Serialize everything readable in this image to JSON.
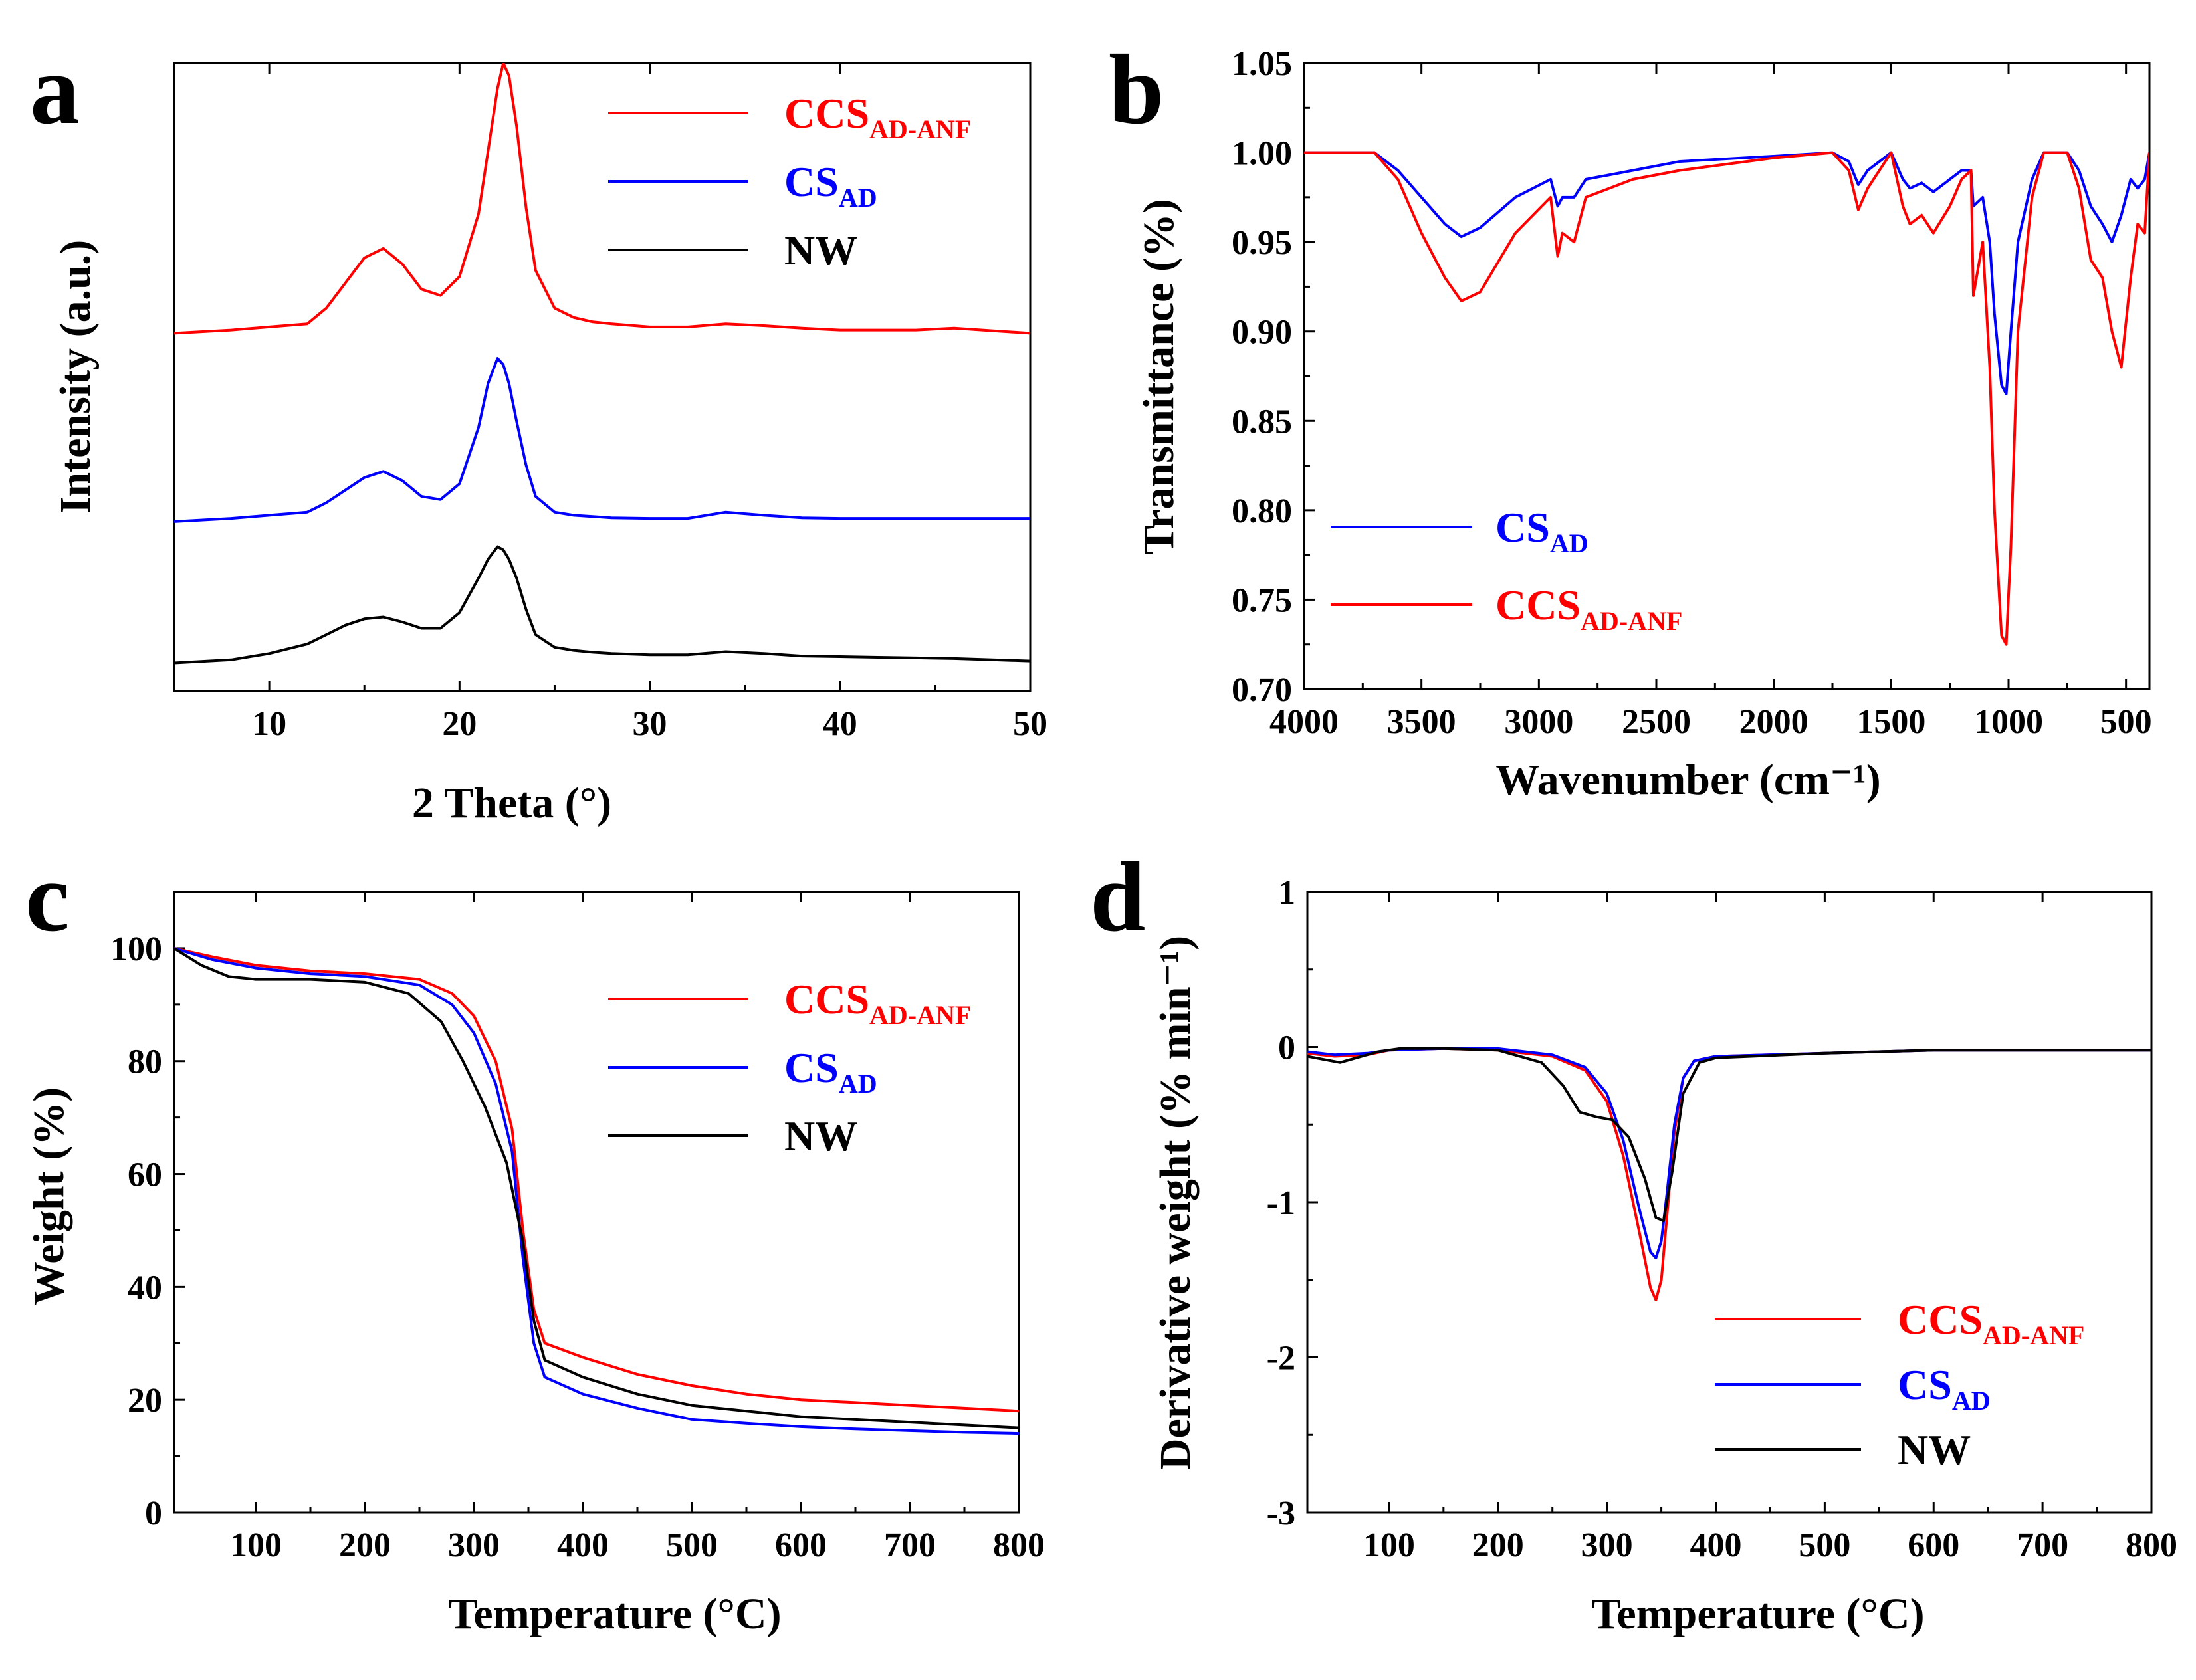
{
  "chart_data": [
    {
      "panel": "a",
      "type": "line",
      "title": "",
      "xlabel": "2 Theta (°)",
      "ylabel": "Intensity (a.u.)",
      "xlim": [
        5,
        50
      ],
      "ylim": [
        0,
        1
      ],
      "x_ticks": [
        "10",
        "20",
        "30",
        "40",
        "50"
      ],
      "y_ticks": [],
      "legend_position": "top-right",
      "series": [
        {
          "name": "CCS",
          "subscript": "AD-ANF",
          "color": "#ff0000",
          "x": [
            5,
            8,
            10,
            12,
            13,
            14,
            15,
            16,
            17,
            18,
            19,
            20,
            21,
            21.5,
            22,
            22.3,
            22.6,
            23,
            23.5,
            24,
            25,
            26,
            27,
            28,
            30,
            32,
            34,
            36,
            38,
            40,
            42,
            44,
            46,
            48,
            50
          ],
          "y": [
            0.57,
            0.575,
            0.58,
            0.585,
            0.61,
            0.65,
            0.69,
            0.705,
            0.68,
            0.64,
            0.63,
            0.66,
            0.76,
            0.86,
            0.96,
            1.0,
            0.98,
            0.9,
            0.77,
            0.67,
            0.61,
            0.595,
            0.588,
            0.585,
            0.58,
            0.58,
            0.585,
            0.582,
            0.578,
            0.575,
            0.575,
            0.575,
            0.578,
            0.574,
            0.57
          ]
        },
        {
          "name": "CS",
          "subscript": "AD",
          "color": "#0000ff",
          "x": [
            5,
            8,
            10,
            12,
            13,
            14,
            15,
            16,
            17,
            18,
            19,
            20,
            21,
            21.5,
            22,
            22.3,
            22.6,
            23,
            23.5,
            24,
            25,
            26,
            27,
            28,
            30,
            32,
            34,
            36,
            38,
            40,
            42,
            44,
            46,
            48,
            50
          ],
          "y": [
            0.27,
            0.275,
            0.28,
            0.285,
            0.3,
            0.32,
            0.34,
            0.35,
            0.335,
            0.31,
            0.305,
            0.33,
            0.42,
            0.49,
            0.53,
            0.52,
            0.49,
            0.43,
            0.36,
            0.31,
            0.285,
            0.28,
            0.278,
            0.276,
            0.275,
            0.275,
            0.285,
            0.28,
            0.276,
            0.275,
            0.275,
            0.275,
            0.275,
            0.275,
            0.275
          ]
        },
        {
          "name": "NW",
          "subscript": "",
          "color": "#000000",
          "x": [
            5,
            8,
            10,
            12,
            13,
            14,
            15,
            16,
            17,
            18,
            19,
            20,
            21,
            21.5,
            22,
            22.3,
            22.6,
            23,
            23.5,
            24,
            25,
            26,
            27,
            28,
            30,
            32,
            34,
            36,
            38,
            40,
            42,
            44,
            46,
            48,
            50
          ],
          "y": [
            0.045,
            0.05,
            0.06,
            0.075,
            0.09,
            0.105,
            0.115,
            0.118,
            0.11,
            0.1,
            0.1,
            0.125,
            0.18,
            0.21,
            0.23,
            0.225,
            0.21,
            0.18,
            0.13,
            0.09,
            0.07,
            0.065,
            0.062,
            0.06,
            0.058,
            0.058,
            0.063,
            0.06,
            0.056,
            0.055,
            0.054,
            0.053,
            0.052,
            0.05,
            0.048
          ]
        }
      ]
    },
    {
      "panel": "b",
      "type": "line",
      "title": "",
      "xlabel": "Wavenumber (cm⁻¹)",
      "ylabel": "Transmittance (%)",
      "xlim": [
        4000,
        400
      ],
      "ylim": [
        0.7,
        1.05
      ],
      "x_ticks": [
        "4000",
        "3500",
        "3000",
        "2500",
        "2000",
        "1500",
        "1000",
        "500"
      ],
      "y_ticks": [
        "0.70",
        "0.75",
        "0.80",
        "0.85",
        "0.90",
        "0.95",
        "1.00",
        "1.05"
      ],
      "legend_position": "lower-left",
      "series": [
        {
          "name": "CS",
          "subscript": "AD",
          "color": "#0000ff",
          "x": [
            4000,
            3700,
            3600,
            3500,
            3400,
            3330,
            3250,
            3100,
            2950,
            2920,
            2900,
            2850,
            2800,
            2600,
            2400,
            2000,
            1750,
            1680,
            1640,
            1600,
            1500,
            1450,
            1420,
            1370,
            1320,
            1250,
            1200,
            1160,
            1150,
            1110,
            1080,
            1060,
            1030,
            1010,
            990,
            960,
            900,
            850,
            800,
            750,
            700,
            650,
            600,
            560,
            520,
            480,
            450,
            420,
            400
          ],
          "y": [
            1.0,
            1.0,
            0.99,
            0.975,
            0.96,
            0.953,
            0.958,
            0.975,
            0.985,
            0.97,
            0.975,
            0.975,
            0.985,
            0.99,
            0.995,
            0.998,
            1.0,
            0.995,
            0.982,
            0.99,
            1.0,
            0.985,
            0.98,
            0.983,
            0.978,
            0.985,
            0.99,
            0.99,
            0.97,
            0.975,
            0.95,
            0.91,
            0.87,
            0.865,
            0.9,
            0.95,
            0.985,
            1.0,
            1.0,
            1.0,
            0.99,
            0.97,
            0.96,
            0.95,
            0.965,
            0.985,
            0.98,
            0.985,
            1.0
          ]
        },
        {
          "name": "CCS",
          "subscript": "AD-ANF",
          "color": "#ff0000",
          "x": [
            4000,
            3700,
            3600,
            3500,
            3400,
            3330,
            3250,
            3100,
            2950,
            2920,
            2900,
            2850,
            2800,
            2600,
            2400,
            2000,
            1750,
            1680,
            1640,
            1600,
            1500,
            1450,
            1420,
            1370,
            1320,
            1250,
            1200,
            1160,
            1150,
            1110,
            1080,
            1060,
            1030,
            1010,
            990,
            960,
            900,
            850,
            800,
            750,
            700,
            650,
            600,
            560,
            520,
            480,
            450,
            420,
            400
          ],
          "y": [
            1.0,
            1.0,
            0.985,
            0.955,
            0.93,
            0.917,
            0.922,
            0.955,
            0.975,
            0.942,
            0.955,
            0.95,
            0.975,
            0.985,
            0.99,
            0.997,
            1.0,
            0.99,
            0.968,
            0.98,
            1.0,
            0.97,
            0.96,
            0.965,
            0.955,
            0.97,
            0.985,
            0.99,
            0.92,
            0.95,
            0.88,
            0.8,
            0.73,
            0.725,
            0.78,
            0.9,
            0.975,
            1.0,
            1.0,
            1.0,
            0.98,
            0.94,
            0.93,
            0.9,
            0.88,
            0.93,
            0.96,
            0.955,
            1.0
          ]
        }
      ]
    },
    {
      "panel": "c",
      "type": "line",
      "title": "",
      "xlabel": "Temperature (°C)",
      "ylabel": "Weight (%)",
      "xlim": [
        25,
        800
      ],
      "ylim": [
        0,
        110
      ],
      "x_ticks": [
        "100",
        "200",
        "300",
        "400",
        "500",
        "600",
        "700",
        "800"
      ],
      "y_ticks": [
        "0",
        "20",
        "40",
        "60",
        "80",
        "100"
      ],
      "legend_position": "top-right",
      "series": [
        {
          "name": "CCS",
          "subscript": "AD-ANF",
          "color": "#ff0000",
          "x": [
            25,
            60,
            100,
            150,
            200,
            250,
            280,
            300,
            320,
            335,
            345,
            355,
            365,
            400,
            450,
            500,
            550,
            600,
            650,
            700,
            750,
            800
          ],
          "y": [
            100,
            98.5,
            97,
            96,
            95.5,
            94.5,
            92,
            88,
            80,
            68,
            50,
            36,
            30,
            27.5,
            24.5,
            22.5,
            21,
            20,
            19.5,
            19,
            18.5,
            18
          ]
        },
        {
          "name": "CS",
          "subscript": "AD",
          "color": "#0000ff",
          "x": [
            25,
            60,
            100,
            150,
            200,
            250,
            280,
            300,
            320,
            335,
            345,
            355,
            365,
            400,
            450,
            500,
            550,
            600,
            650,
            700,
            750,
            800
          ],
          "y": [
            100,
            98,
            96.5,
            95.5,
            95,
            93.5,
            90,
            85,
            76,
            64,
            45,
            30,
            24,
            21,
            18.5,
            16.5,
            15.8,
            15.2,
            14.8,
            14.5,
            14.2,
            14
          ]
        },
        {
          "name": "NW",
          "subscript": "",
          "color": "#000000",
          "x": [
            25,
            50,
            75,
            100,
            150,
            200,
            240,
            270,
            290,
            310,
            330,
            345,
            355,
            365,
            400,
            450,
            500,
            550,
            600,
            650,
            700,
            750,
            800
          ],
          "y": [
            100,
            97,
            95,
            94.5,
            94.5,
            94,
            92,
            87,
            80,
            72,
            62,
            48,
            34,
            27,
            24,
            21,
            19,
            18,
            17,
            16.5,
            16,
            15.5,
            15
          ]
        }
      ]
    },
    {
      "panel": "d",
      "type": "line",
      "title": "",
      "xlabel": "Temperature (°C)",
      "ylabel": "Derivative weight (% min⁻¹)",
      "xlim": [
        25,
        800
      ],
      "ylim": [
        -3,
        1
      ],
      "x_ticks": [
        "100",
        "200",
        "300",
        "400",
        "500",
        "600",
        "700",
        "800"
      ],
      "y_ticks": [
        "-3",
        "-2",
        "-1",
        "0",
        "1"
      ],
      "legend_position": "lower-right",
      "series": [
        {
          "name": "CCS",
          "subscript": "AD-ANF",
          "color": "#ff0000",
          "x": [
            25,
            50,
            80,
            100,
            150,
            200,
            250,
            280,
            300,
            315,
            330,
            340,
            345,
            350,
            355,
            362,
            370,
            380,
            400,
            500,
            600,
            700,
            800
          ],
          "y": [
            -0.04,
            -0.06,
            -0.05,
            -0.02,
            -0.01,
            -0.02,
            -0.06,
            -0.15,
            -0.35,
            -0.7,
            -1.2,
            -1.55,
            -1.63,
            -1.5,
            -1.1,
            -0.55,
            -0.2,
            -0.09,
            -0.06,
            -0.04,
            -0.02,
            -0.02,
            -0.02
          ]
        },
        {
          "name": "CS",
          "subscript": "AD",
          "color": "#0000ff",
          "x": [
            25,
            50,
            80,
            100,
            150,
            200,
            250,
            280,
            300,
            315,
            330,
            340,
            345,
            350,
            355,
            362,
            370,
            380,
            400,
            500,
            600,
            700,
            800
          ],
          "y": [
            -0.03,
            -0.05,
            -0.04,
            -0.02,
            -0.01,
            -0.01,
            -0.05,
            -0.13,
            -0.3,
            -0.6,
            -1.05,
            -1.32,
            -1.36,
            -1.25,
            -0.95,
            -0.5,
            -0.2,
            -0.09,
            -0.06,
            -0.04,
            -0.02,
            -0.02,
            -0.02
          ]
        },
        {
          "name": "NW",
          "subscript": "",
          "color": "#000000",
          "x": [
            25,
            40,
            55,
            70,
            90,
            110,
            150,
            200,
            240,
            260,
            275,
            290,
            305,
            320,
            335,
            345,
            352,
            360,
            370,
            385,
            400,
            500,
            600,
            700,
            800
          ],
          "y": [
            -0.06,
            -0.08,
            -0.1,
            -0.07,
            -0.03,
            -0.01,
            -0.01,
            -0.02,
            -0.1,
            -0.25,
            -0.42,
            -0.45,
            -0.47,
            -0.58,
            -0.85,
            -1.1,
            -1.12,
            -0.8,
            -0.3,
            -0.1,
            -0.07,
            -0.04,
            -0.02,
            -0.02,
            -0.02
          ]
        }
      ]
    }
  ]
}
